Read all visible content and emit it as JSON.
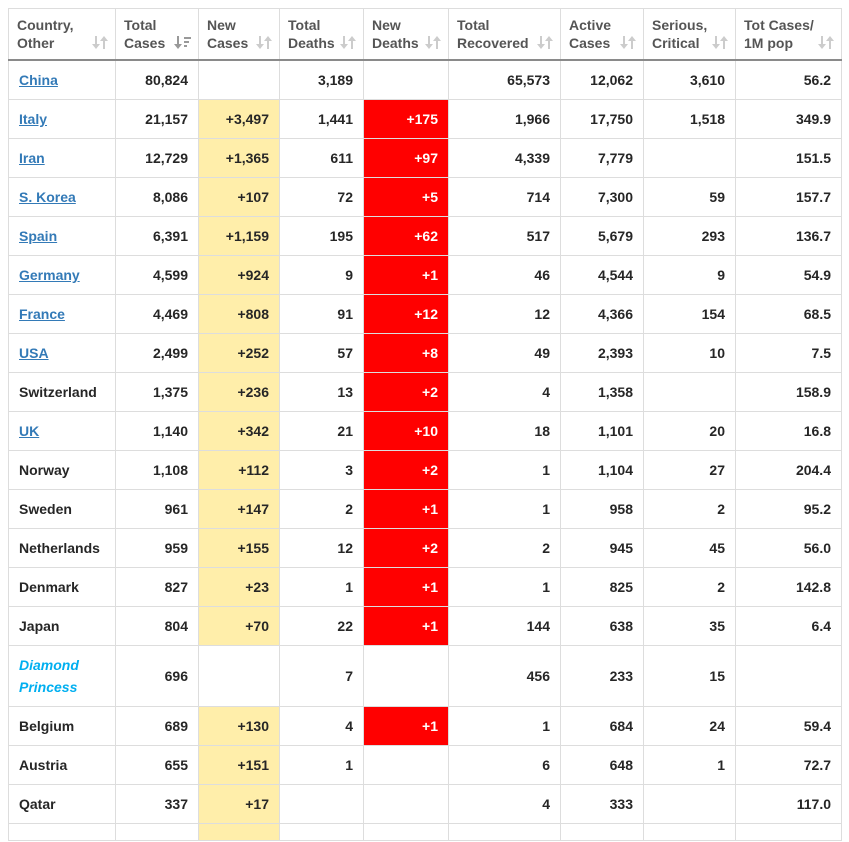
{
  "table": {
    "columns": [
      {
        "id": "country",
        "label_line1": "Country,",
        "label_line2": "Other",
        "sort": "unsorted"
      },
      {
        "id": "total_cases",
        "label_line1": "Total",
        "label_line2": "Cases",
        "sort": "desc"
      },
      {
        "id": "new_cases",
        "label_line1": "New",
        "label_line2": "Cases",
        "sort": "unsorted"
      },
      {
        "id": "total_deaths",
        "label_line1": "Total",
        "label_line2": "Deaths",
        "sort": "unsorted"
      },
      {
        "id": "new_deaths",
        "label_line1": "New",
        "label_line2": "Deaths",
        "sort": "unsorted"
      },
      {
        "id": "total_recovered",
        "label_line1": "Total",
        "label_line2": "Recovered",
        "sort": "unsorted"
      },
      {
        "id": "active_cases",
        "label_line1": "Active",
        "label_line2": "Cases",
        "sort": "unsorted"
      },
      {
        "id": "serious_critical",
        "label_line1": "Serious,",
        "label_line2": "Critical",
        "sort": "unsorted"
      },
      {
        "id": "cases_per_1m",
        "label_line1": "Tot Cases/",
        "label_line2": "1M pop",
        "sort": "unsorted"
      }
    ],
    "rows": [
      {
        "country": "China",
        "country_style": "link",
        "total_cases": "80,824",
        "new_cases": "",
        "total_deaths": "3,189",
        "new_deaths": "",
        "total_recovered": "65,573",
        "active_cases": "12,062",
        "serious_critical": "3,610",
        "cases_per_1m": "56.2"
      },
      {
        "country": "Italy",
        "country_style": "link",
        "total_cases": "21,157",
        "new_cases": "+3,497",
        "total_deaths": "1,441",
        "new_deaths": "+175",
        "total_recovered": "1,966",
        "active_cases": "17,750",
        "serious_critical": "1,518",
        "cases_per_1m": "349.9"
      },
      {
        "country": "Iran",
        "country_style": "link",
        "total_cases": "12,729",
        "new_cases": "+1,365",
        "total_deaths": "611",
        "new_deaths": "+97",
        "total_recovered": "4,339",
        "active_cases": "7,779",
        "serious_critical": "",
        "cases_per_1m": "151.5"
      },
      {
        "country": "S. Korea",
        "country_style": "link",
        "total_cases": "8,086",
        "new_cases": "+107",
        "total_deaths": "72",
        "new_deaths": "+5",
        "total_recovered": "714",
        "active_cases": "7,300",
        "serious_critical": "59",
        "cases_per_1m": "157.7"
      },
      {
        "country": "Spain",
        "country_style": "link",
        "total_cases": "6,391",
        "new_cases": "+1,159",
        "total_deaths": "195",
        "new_deaths": "+62",
        "total_recovered": "517",
        "active_cases": "5,679",
        "serious_critical": "293",
        "cases_per_1m": "136.7"
      },
      {
        "country": "Germany",
        "country_style": "link",
        "total_cases": "4,599",
        "new_cases": "+924",
        "total_deaths": "9",
        "new_deaths": "+1",
        "total_recovered": "46",
        "active_cases": "4,544",
        "serious_critical": "9",
        "cases_per_1m": "54.9"
      },
      {
        "country": "France",
        "country_style": "link",
        "total_cases": "4,469",
        "new_cases": "+808",
        "total_deaths": "91",
        "new_deaths": "+12",
        "total_recovered": "12",
        "active_cases": "4,366",
        "serious_critical": "154",
        "cases_per_1m": "68.5"
      },
      {
        "country": "USA",
        "country_style": "link",
        "total_cases": "2,499",
        "new_cases": "+252",
        "total_deaths": "57",
        "new_deaths": "+8",
        "total_recovered": "49",
        "active_cases": "2,393",
        "serious_critical": "10",
        "cases_per_1m": "7.5"
      },
      {
        "country": "Switzerland",
        "country_style": "plain",
        "total_cases": "1,375",
        "new_cases": "+236",
        "total_deaths": "13",
        "new_deaths": "+2",
        "total_recovered": "4",
        "active_cases": "1,358",
        "serious_critical": "",
        "cases_per_1m": "158.9"
      },
      {
        "country": "UK",
        "country_style": "link",
        "total_cases": "1,140",
        "new_cases": "+342",
        "total_deaths": "21",
        "new_deaths": "+10",
        "total_recovered": "18",
        "active_cases": "1,101",
        "serious_critical": "20",
        "cases_per_1m": "16.8"
      },
      {
        "country": "Norway",
        "country_style": "plain",
        "total_cases": "1,108",
        "new_cases": "+112",
        "total_deaths": "3",
        "new_deaths": "+2",
        "total_recovered": "1",
        "active_cases": "1,104",
        "serious_critical": "27",
        "cases_per_1m": "204.4"
      },
      {
        "country": "Sweden",
        "country_style": "plain",
        "total_cases": "961",
        "new_cases": "+147",
        "total_deaths": "2",
        "new_deaths": "+1",
        "total_recovered": "1",
        "active_cases": "958",
        "serious_critical": "2",
        "cases_per_1m": "95.2"
      },
      {
        "country": "Netherlands",
        "country_style": "plain",
        "total_cases": "959",
        "new_cases": "+155",
        "total_deaths": "12",
        "new_deaths": "+2",
        "total_recovered": "2",
        "active_cases": "945",
        "serious_critical": "45",
        "cases_per_1m": "56.0"
      },
      {
        "country": "Denmark",
        "country_style": "plain",
        "total_cases": "827",
        "new_cases": "+23",
        "total_deaths": "1",
        "new_deaths": "+1",
        "total_recovered": "1",
        "active_cases": "825",
        "serious_critical": "2",
        "cases_per_1m": "142.8"
      },
      {
        "country": "Japan",
        "country_style": "plain",
        "total_cases": "804",
        "new_cases": "+70",
        "total_deaths": "22",
        "new_deaths": "+1",
        "total_recovered": "144",
        "active_cases": "638",
        "serious_critical": "35",
        "cases_per_1m": "6.4"
      },
      {
        "country": "Diamond Princess",
        "country_style": "cruise",
        "total_cases": "696",
        "new_cases": "",
        "total_deaths": "7",
        "new_deaths": "",
        "total_recovered": "456",
        "active_cases": "233",
        "serious_critical": "15",
        "cases_per_1m": ""
      },
      {
        "country": "Belgium",
        "country_style": "plain",
        "total_cases": "689",
        "new_cases": "+130",
        "total_deaths": "4",
        "new_deaths": "+1",
        "total_recovered": "1",
        "active_cases": "684",
        "serious_critical": "24",
        "cases_per_1m": "59.4"
      },
      {
        "country": "Austria",
        "country_style": "plain",
        "total_cases": "655",
        "new_cases": "+151",
        "total_deaths": "1",
        "new_deaths": "",
        "total_recovered": "6",
        "active_cases": "648",
        "serious_critical": "1",
        "cases_per_1m": "72.7"
      },
      {
        "country": "Qatar",
        "country_style": "plain",
        "total_cases": "337",
        "new_cases": "+17",
        "total_deaths": "",
        "new_deaths": "",
        "total_recovered": "4",
        "active_cases": "333",
        "serious_critical": "",
        "cases_per_1m": "117.0"
      },
      {
        "country": "",
        "country_style": "plain",
        "total_cases": "",
        "new_cases": "",
        "total_deaths": "",
        "new_deaths": "",
        "total_recovered": "",
        "active_cases": "",
        "serious_critical": "",
        "cases_per_1m": "",
        "partial": true,
        "new_cases_highlight": true
      }
    ]
  },
  "colors": {
    "new_cases_highlight": "#FFEEAA",
    "new_deaths_highlight": "#FF0000",
    "new_deaths_text": "#FFFFFF",
    "country_link": "#337AB7",
    "cruise_ship_text": "#00AFF0",
    "header_text": "#555555",
    "body_text": "#262626",
    "cell_border": "#DDDDDD",
    "header_bottom_border": "#8A8A8A",
    "sort_icon_inactive": "#CCCCCC",
    "sort_icon_active": "#999999"
  },
  "icons": {
    "unsorted": "sort-updown-icon",
    "desc": "sort-amount-desc-icon"
  }
}
